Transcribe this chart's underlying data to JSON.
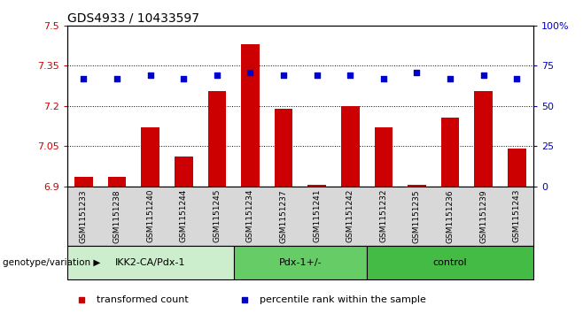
{
  "title": "GDS4933 / 10433597",
  "samples": [
    "GSM1151233",
    "GSM1151238",
    "GSM1151240",
    "GSM1151244",
    "GSM1151245",
    "GSM1151234",
    "GSM1151237",
    "GSM1151241",
    "GSM1151242",
    "GSM1151232",
    "GSM1151235",
    "GSM1151236",
    "GSM1151239",
    "GSM1151243"
  ],
  "bar_values": [
    6.935,
    6.935,
    7.12,
    7.01,
    7.255,
    7.43,
    7.19,
    6.905,
    7.2,
    7.12,
    6.905,
    7.155,
    7.255,
    7.04
  ],
  "percentile_values": [
    67,
    67,
    69,
    67,
    69,
    71,
    69,
    69,
    69,
    67,
    71,
    67,
    69,
    67
  ],
  "groups": [
    {
      "name": "IKK2-CA/Pdx-1",
      "count": 5,
      "color": "#cceecc"
    },
    {
      "name": "Pdx-1+/-",
      "count": 4,
      "color": "#66cc66"
    },
    {
      "name": "control",
      "count": 5,
      "color": "#44bb44"
    }
  ],
  "ylim_left": [
    6.9,
    7.5
  ],
  "ylim_right": [
    0,
    100
  ],
  "yticks_left": [
    6.9,
    7.05,
    7.2,
    7.35,
    7.5
  ],
  "yticks_right": [
    0,
    25,
    50,
    75,
    100
  ],
  "ytick_labels_right": [
    "0",
    "25",
    "50",
    "75",
    "100%"
  ],
  "bar_color": "#cc0000",
  "dot_color": "#0000cc",
  "bar_width": 0.55,
  "legend_items": [
    "transformed count",
    "percentile rank within the sample"
  ],
  "legend_colors": [
    "#cc0000",
    "#0000cc"
  ],
  "genotype_label": "genotype/variation",
  "ylabel_left_color": "#cc0000",
  "ylabel_right_color": "#0000cc",
  "xtick_gray": "#d8d8d8"
}
